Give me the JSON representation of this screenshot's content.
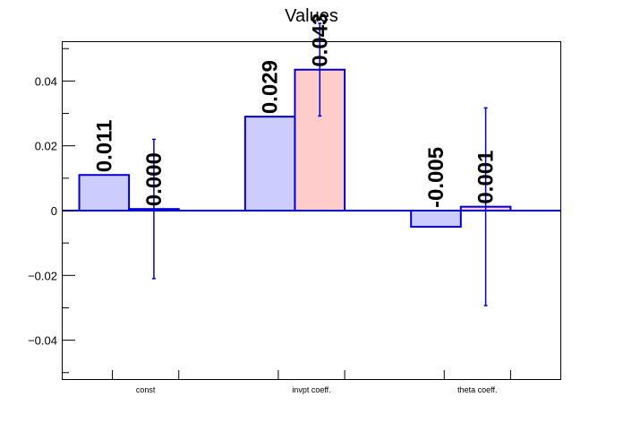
{
  "chart_data": {
    "type": "bar",
    "title": "Values",
    "categories": [
      "const",
      "invpt coeff.",
      "theta coeff."
    ],
    "series": [
      {
        "values": [
          0.011,
          0.029,
          -0.005
        ],
        "labels": [
          "0.011",
          "0.029",
          "-0.005"
        ],
        "color": "#ccccff"
      },
      {
        "values": [
          0.0005,
          0.0435,
          0.0012
        ],
        "errors": [
          0.0215,
          0.0143,
          0.0305
        ],
        "labels": [
          "0.000",
          "0.043",
          "0.001"
        ],
        "color": "#ffcccc"
      }
    ],
    "bar_outline_color": "#0000cc",
    "ylim": [
      -0.052,
      0.052
    ],
    "yticks": [
      -0.04,
      -0.02,
      0,
      0.02,
      0.04
    ],
    "ytick_labels": [
      "−0.04",
      "−0.02",
      "0",
      "0.02",
      "0.04"
    ],
    "grid": false,
    "xlabel": "",
    "ylabel": ""
  }
}
